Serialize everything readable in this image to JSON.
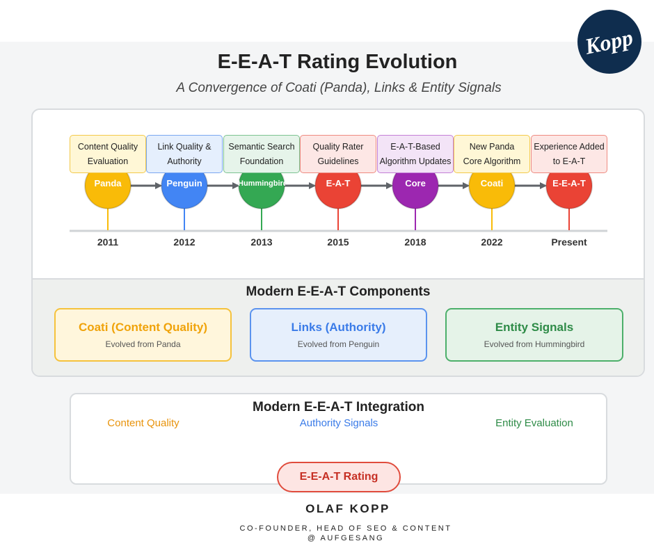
{
  "logo": {
    "text": "Kopp"
  },
  "header": {
    "title": "E-E-A-T Rating Evolution",
    "subtitle": "A Convergence of Coati (Panda), Links & Entity Signals"
  },
  "timeline": {
    "events": [
      {
        "year": "2011",
        "node": "Panda",
        "label_line1": "Content Quality",
        "label_line2": "Evaluation",
        "color": "#f9bb08",
        "box_bg": "#fff7d6",
        "box_border": "#f3c94a"
      },
      {
        "year": "2012",
        "node": "Penguin",
        "label_line1": "Link Quality &",
        "label_line2": "Authority",
        "color": "#4285f4",
        "box_bg": "#e5effd",
        "box_border": "#7aa7f0"
      },
      {
        "year": "2013",
        "node": "Hummingbird",
        "label_line1": "Semantic Search",
        "label_line2": "Foundation",
        "color": "#34a853",
        "box_bg": "#e6f4ea",
        "box_border": "#7cc391"
      },
      {
        "year": "2015",
        "node": "E-A-T",
        "label_line1": "Quality Rater",
        "label_line2": "Guidelines",
        "color": "#ea4335",
        "box_bg": "#fde7e5",
        "box_border": "#ee8a80"
      },
      {
        "year": "2018",
        "node": "Core",
        "label_line1": "E-A-T-Based",
        "label_line2": "Algorithm Updates",
        "color": "#9c27b0",
        "box_bg": "#f3e4f7",
        "box_border": "#c37fd6"
      },
      {
        "year": "2022",
        "node": "Coati",
        "label_line1": "New Panda",
        "label_line2": "Core Algorithm",
        "color": "#f9bb08",
        "box_bg": "#fff7d6",
        "box_border": "#f3c94a"
      },
      {
        "year": "Present",
        "node": "E-E-A-T",
        "label_line1": "Experience Added",
        "label_line2": "to E-A-T",
        "color": "#ea4335",
        "box_bg": "#fde7e5",
        "box_border": "#ee8a80"
      }
    ]
  },
  "components": {
    "title": "Modern E-E-A-T Components",
    "cards": [
      {
        "title": "Coati (Content Quality)",
        "subtitle": "Evolved from Panda",
        "color": "#f0a30a",
        "bg": "#fff6dc",
        "border": "#f5c23c"
      },
      {
        "title": "Links (Authority)",
        "subtitle": "Evolved from Penguin",
        "color": "#3a7be8",
        "bg": "#e6effc",
        "border": "#5b93ee"
      },
      {
        "title": "Entity Signals",
        "subtitle": "Evolved from Hummingbird",
        "color": "#2e8b47",
        "bg": "#e5f3e8",
        "border": "#4caf6a"
      }
    ]
  },
  "integration": {
    "title": "Modern E-E-A-T Integration",
    "sources": [
      {
        "label": "Content Quality",
        "color": "#e8930c"
      },
      {
        "label": "Authority Signals",
        "color": "#3a7be8"
      },
      {
        "label": "Entity Evaluation",
        "color": "#2e8b47"
      }
    ],
    "result": "E-E-A-T Rating"
  },
  "author": {
    "name": "OLAF KOPP",
    "role": "CO-FOUNDER, HEAD OF SEO & CONTENT",
    "company": "@ AUFGESANG"
  }
}
